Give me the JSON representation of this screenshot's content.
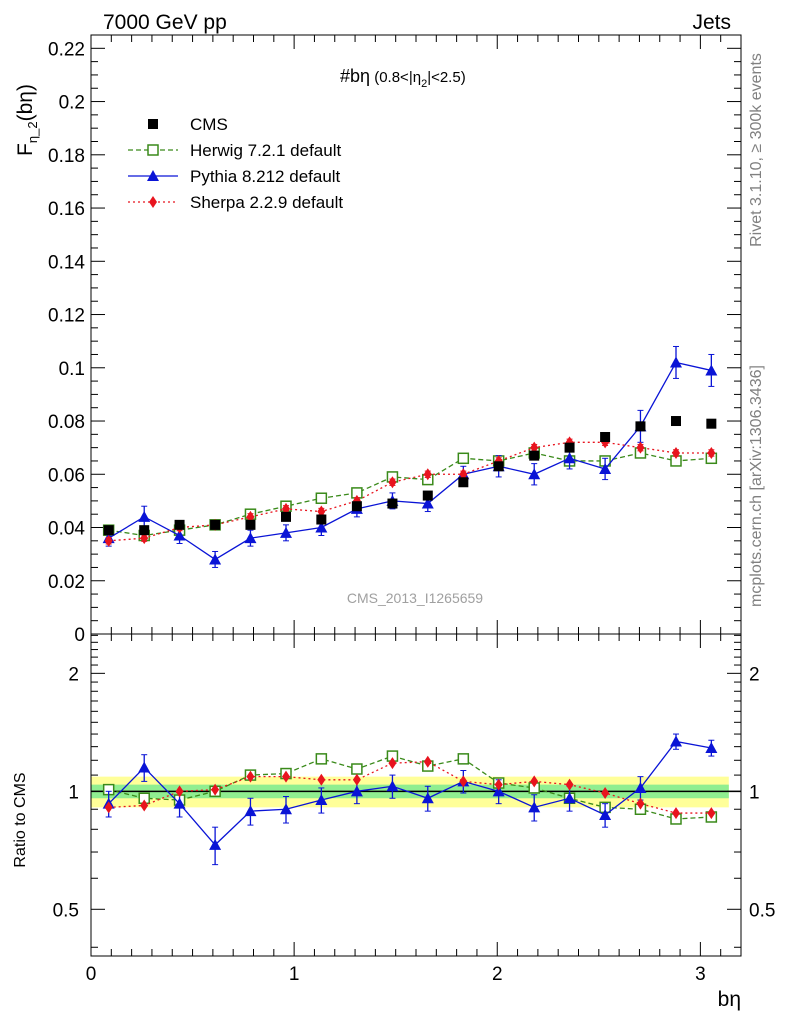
{
  "header": {
    "energy_label": "7000 GeV pp",
    "process_label": "Jets",
    "rivet_label": "Rivet 3.1.10, ≥ 300k events",
    "mcplots_label": "mcplots.cern.ch [arXiv:1306.3436]",
    "analysis_id": "CMS_2013_I1265659"
  },
  "chart_data": [
    {
      "type": "line",
      "panel": "main",
      "title_main": "#bη",
      "title_sub": " (0.8<|η",
      "title_sub2": "2",
      "title_sub3": "|<2.5)",
      "ylabel_main": "F",
      "ylabel_sub": "η_2",
      "ylabel_tail": "(bη)",
      "ylim": [
        0,
        0.225
      ],
      "xlim": [
        0,
        3.2
      ],
      "y_ticks": [
        "0",
        "0.02",
        "0.04",
        "0.06",
        "0.08",
        "0.1",
        "0.12",
        "0.14",
        "0.16",
        "0.18",
        "0.2",
        "0.22"
      ],
      "y_tick_values": [
        0,
        0.02,
        0.04,
        0.06,
        0.08,
        0.1,
        0.12,
        0.14,
        0.16,
        0.18,
        0.2,
        0.22
      ],
      "x": [
        0.087,
        0.262,
        0.436,
        0.611,
        0.785,
        0.96,
        1.134,
        1.309,
        1.484,
        1.658,
        1.833,
        2.007,
        2.182,
        2.356,
        2.531,
        2.705,
        2.88,
        3.054
      ],
      "legend": [
        {
          "name": "CMS",
          "color": "#000000",
          "marker": "square"
        },
        {
          "name": "Herwig 7.2.1 default",
          "color": "#3a8a1a",
          "marker": "open-square"
        },
        {
          "name": "Pythia 8.212 default",
          "color": "#0a14d6",
          "marker": "triangle"
        },
        {
          "name": "Sherpa 2.2.9 default",
          "color": "#e8141e",
          "marker": "diamond"
        }
      ],
      "series": [
        {
          "values": [
            0.039,
            0.039,
            0.041,
            0.041,
            0.041,
            0.044,
            0.043,
            0.048,
            0.049,
            0.052,
            0.057,
            0.063,
            0.067,
            0.07,
            0.074,
            0.078,
            0.08,
            0.079
          ],
          "errors": [
            0.0015,
            0.0015,
            0.0015,
            0.0015,
            0.0015,
            0.0015,
            0.0015,
            0.0015,
            0.0015,
            0.0015,
            0.0015,
            0.0015,
            0.0015,
            0.0015,
            0.0015,
            0.0015,
            0.0015,
            0.0015
          ]
        },
        {
          "values": [
            0.039,
            0.037,
            0.039,
            0.041,
            0.045,
            0.048,
            0.051,
            0.053,
            0.059,
            0.058,
            0.066,
            0.065,
            0.068,
            0.065,
            0.065,
            0.068,
            0.065,
            0.066
          ],
          "errors": [
            0.0012,
            0.0012,
            0.0012,
            0.0012,
            0.0012,
            0.0012,
            0.0012,
            0.0012,
            0.0012,
            0.0012,
            0.0012,
            0.0012,
            0.0012,
            0.0012,
            0.0012,
            0.0012,
            0.0012,
            0.0012
          ]
        },
        {
          "values": [
            0.036,
            0.044,
            0.037,
            0.028,
            0.036,
            0.038,
            0.04,
            0.047,
            0.05,
            0.049,
            0.06,
            0.063,
            0.06,
            0.066,
            0.062,
            0.078,
            0.102,
            0.099
          ],
          "errors": [
            0.003,
            0.004,
            0.003,
            0.003,
            0.003,
            0.003,
            0.003,
            0.003,
            0.003,
            0.003,
            0.003,
            0.004,
            0.004,
            0.004,
            0.004,
            0.006,
            0.006,
            0.006
          ]
        },
        {
          "values": [
            0.035,
            0.036,
            0.04,
            0.041,
            0.044,
            0.047,
            0.046,
            0.05,
            0.057,
            0.06,
            0.06,
            0.065,
            0.07,
            0.072,
            0.072,
            0.07,
            0.068,
            0.068
          ],
          "errors": [
            0.0012,
            0.0012,
            0.0012,
            0.0012,
            0.0012,
            0.0012,
            0.0012,
            0.0012,
            0.0012,
            0.0012,
            0.0012,
            0.0012,
            0.0012,
            0.0012,
            0.0012,
            0.0012,
            0.0012,
            0.0012
          ]
        }
      ]
    },
    {
      "type": "line",
      "panel": "ratio",
      "ylabel": "Ratio to CMS",
      "ylim": [
        0.38,
        2.52
      ],
      "log_y": true,
      "y_ticks": [
        "0.5",
        "1",
        "2"
      ],
      "y_tick_values": [
        0.5,
        1,
        2
      ],
      "xlabel": "bη",
      "x_ticks": [
        "0",
        "1",
        "2",
        "3"
      ],
      "x_tick_values": [
        0,
        1,
        2,
        3
      ],
      "band_inner": 0.04,
      "band_outer": 0.09,
      "band_inner_color": "#90ee90",
      "band_outer_color": "#ffff99",
      "series": [
        {
          "values": [
            1.01,
            0.96,
            0.95,
            1.0,
            1.1,
            1.11,
            1.21,
            1.14,
            1.23,
            1.16,
            1.21,
            1.05,
            1.02,
            0.96,
            0.91,
            0.9,
            0.85,
            0.86
          ],
          "errors": []
        },
        {
          "values": [
            0.93,
            1.15,
            0.93,
            0.73,
            0.89,
            0.9,
            0.95,
            1.0,
            1.03,
            0.96,
            1.06,
            1.0,
            0.91,
            0.96,
            0.87,
            1.02,
            1.34,
            1.29
          ],
          "errors": [
            0.07,
            0.09,
            0.07,
            0.08,
            0.07,
            0.07,
            0.07,
            0.07,
            0.07,
            0.07,
            0.07,
            0.07,
            0.07,
            0.07,
            0.06,
            0.07,
            0.06,
            0.06
          ]
        },
        {
          "values": [
            0.91,
            0.92,
            1.0,
            1.01,
            1.09,
            1.09,
            1.07,
            1.07,
            1.18,
            1.19,
            1.06,
            1.04,
            1.06,
            1.04,
            0.99,
            0.93,
            0.88,
            0.88
          ],
          "errors": []
        }
      ]
    }
  ]
}
